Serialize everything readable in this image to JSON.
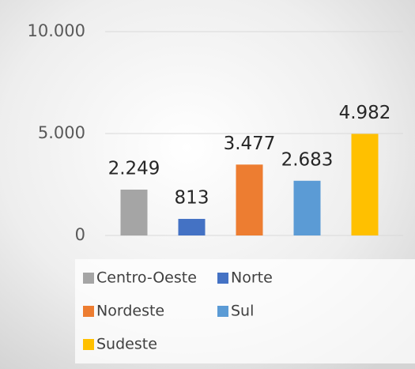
{
  "chart_data": {
    "type": "bar",
    "categories": [
      "Centro-Oeste",
      "Norte",
      "Nordeste",
      "Sul",
      "Sudeste"
    ],
    "values": [
      2249,
      813,
      3477,
      2683,
      4982
    ],
    "value_labels": [
      "2.249",
      "813",
      "3.477",
      "2.683",
      "4.982"
    ],
    "colors": [
      "#a5a5a5",
      "#4472c4",
      "#ed7d31",
      "#5b9bd5",
      "#ffc000"
    ],
    "ylim": [
      0,
      10000
    ],
    "yticks": [
      {
        "value": 0,
        "label": "0"
      },
      {
        "value": 5000,
        "label": "5.000"
      },
      {
        "value": 10000,
        "label": "10.000"
      }
    ],
    "grid": true,
    "legend": "bottom"
  }
}
